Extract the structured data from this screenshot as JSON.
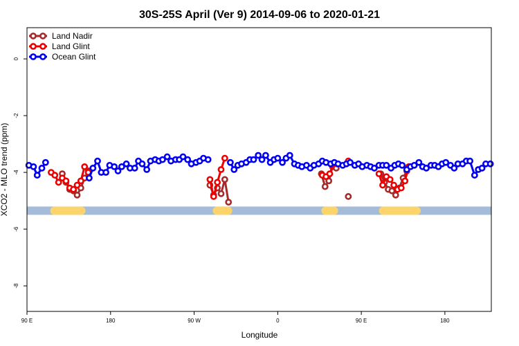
{
  "chart_data": {
    "type": "line",
    "title": "30S-25S April (Ver 9)   2014-09-06 to 2020-01-21",
    "xlabel": "Longitude",
    "ylabel": "XCO2 - MLO trend (ppm)",
    "xlim": [
      90,
      590
    ],
    "ylim": [
      -8.9,
      1.1
    ],
    "x_ticks": [
      {
        "value": 90,
        "label": "90 E"
      },
      {
        "value": 180,
        "label": "180"
      },
      {
        "value": 270,
        "label": "90 W"
      },
      {
        "value": 360,
        "label": "0"
      },
      {
        "value": 450,
        "label": "90 E"
      },
      {
        "value": 540,
        "label": "180"
      }
    ],
    "y_ticks": [
      {
        "value": 0,
        "label": "0"
      },
      {
        "value": -2,
        "label": "-2"
      },
      {
        "value": -4,
        "label": "-4"
      },
      {
        "value": -6,
        "label": "-6"
      },
      {
        "value": -8,
        "label": "-8"
      }
    ],
    "grid": false,
    "legend_position": "top-left",
    "land_band": {
      "y": -5.35,
      "ocean_color": "#a5bcd9",
      "land_color": "#fbd46b",
      "land_ranges": [
        [
          115,
          153
        ],
        [
          290,
          311
        ],
        [
          407,
          425
        ],
        [
          469,
          514
        ]
      ]
    },
    "series": [
      {
        "name": "Land Nadir",
        "color": "#a52a2a",
        "segments": [
          {
            "x": [
              128,
              132,
              136,
              140,
              144,
              148,
              152,
              156
            ],
            "y": [
              -4.05,
              -4.35,
              -4.6,
              -4.65,
              -4.8,
              -4.55,
              -4.2,
              -3.95
            ]
          },
          {
            "x": [
              287,
              291,
              295,
              299,
              303,
              307
            ],
            "y": [
              -4.45,
              -4.8,
              -4.55,
              -4.75,
              -4.25,
              -5.05
            ]
          },
          {
            "x": [
              407,
              411,
              415,
              419,
              423
            ],
            "y": [
              -4.05,
              -4.5,
              -4.3,
              -3.8,
              -3.85
            ]
          },
          {
            "x": [
              436
            ],
            "y": [
              -4.85
            ]
          },
          {
            "x": [
              471,
              475,
              479,
              483,
              487,
              491,
              495,
              499
            ],
            "y": [
              -4.05,
              -4.35,
              -4.6,
              -4.65,
              -4.8,
              -4.55,
              -4.2,
              -3.95
            ]
          }
        ]
      },
      {
        "name": "Land Glint",
        "color": "#ee0000",
        "segments": [
          {
            "x": [
              116,
              120,
              124,
              128,
              132,
              136,
              140,
              144,
              148,
              152,
              156
            ],
            "y": [
              -4.0,
              -4.1,
              -4.35,
              -4.2,
              -4.3,
              -4.55,
              -4.6,
              -4.45,
              -4.3,
              -3.8,
              -4.0
            ]
          },
          {
            "x": [
              287,
              291,
              295,
              299,
              303
            ],
            "y": [
              -4.25,
              -4.85,
              -4.35,
              -3.9,
              -3.5
            ]
          },
          {
            "x": [
              408,
              412,
              416,
              420,
              424
            ],
            "y": [
              -4.1,
              -4.15,
              -4.05,
              -3.7,
              -3.7
            ]
          },
          {
            "x": [
              436
            ],
            "y": [
              -3.6
            ]
          },
          {
            "x": [
              469,
              473,
              477,
              481,
              485,
              489,
              493,
              497,
              501
            ],
            "y": [
              -4.05,
              -4.45,
              -4.15,
              -4.25,
              -4.45,
              -4.6,
              -4.55,
              -4.3,
              -3.8
            ]
          }
        ]
      },
      {
        "name": "Ocean Glint",
        "color": "#0000ee",
        "segments": [
          {
            "x": [
              92,
              97,
              101,
              106,
              110
            ],
            "y": [
              -3.75,
              -3.8,
              -4.1,
              -3.85,
              -3.65
            ]
          },
          {
            "x": [
              157,
              161,
              166,
              170,
              175,
              179,
              184,
              188,
              192,
              197,
              201,
              206,
              210,
              214,
              219,
              223,
              228,
              232,
              236,
              241,
              245,
              250,
              254,
              258,
              263,
              267,
              272,
              276,
              280,
              285
            ],
            "y": [
              -4.2,
              -3.85,
              -3.6,
              -4.0,
              -4.0,
              -3.75,
              -3.8,
              -3.95,
              -3.8,
              -3.7,
              -3.85,
              -3.85,
              -3.6,
              -3.7,
              -3.9,
              -3.6,
              -3.55,
              -3.6,
              -3.55,
              -3.45,
              -3.6,
              -3.55,
              -3.55,
              -3.45,
              -3.55,
              -3.7,
              -3.65,
              -3.6,
              -3.5,
              -3.55
            ]
          },
          {
            "x": [
              309,
              313,
              317,
              321,
              326,
              330,
              334,
              339,
              343,
              347,
              352,
              356,
              360,
              365,
              369,
              373,
              378,
              382,
              386,
              391,
              395,
              399,
              404,
              408,
              412,
              417,
              421,
              425,
              430,
              434,
              438,
              443,
              447,
              451,
              456,
              460,
              464,
              469,
              473,
              477,
              482,
              486,
              490,
              494,
              499,
              503,
              507,
              512,
              516,
              520,
              525,
              529,
              533,
              537,
              541,
              546,
              550,
              554,
              559,
              563,
              567,
              572,
              576,
              580,
              584,
              589
            ],
            "y": [
              -3.65,
              -3.9,
              -3.75,
              -3.7,
              -3.65,
              -3.55,
              -3.55,
              -3.4,
              -3.55,
              -3.4,
              -3.65,
              -3.55,
              -3.5,
              -3.65,
              -3.5,
              -3.4,
              -3.7,
              -3.75,
              -3.8,
              -3.75,
              -3.85,
              -3.75,
              -3.7,
              -3.6,
              -3.65,
              -3.7,
              -3.65,
              -3.7,
              -3.75,
              -3.7,
              -3.65,
              -3.75,
              -3.7,
              -3.8,
              -3.75,
              -3.8,
              -3.85,
              -3.75,
              -3.75,
              -3.75,
              -3.85,
              -3.75,
              -3.7,
              -3.75,
              -3.9,
              -3.8,
              -3.75,
              -3.65,
              -3.8,
              -3.85,
              -3.75,
              -3.75,
              -3.8,
              -3.7,
              -3.65,
              -3.75,
              -3.85,
              -3.7,
              -3.7,
              -3.6,
              -3.6,
              -4.1,
              -3.9,
              -3.85,
              -3.7,
              -3.7
            ]
          }
        ]
      }
    ]
  }
}
